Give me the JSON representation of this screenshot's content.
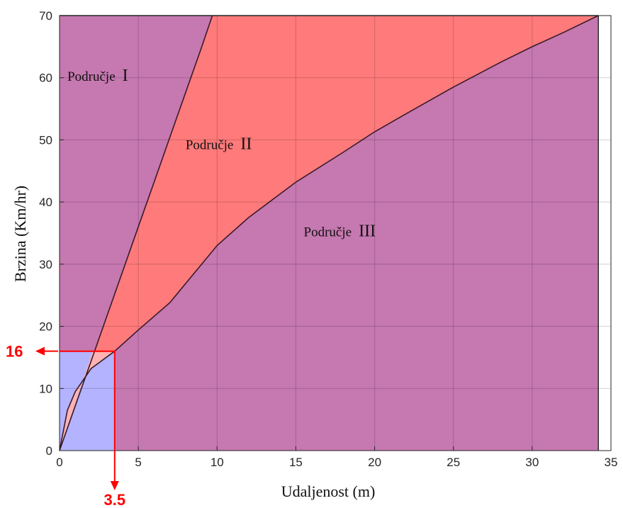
{
  "chart_data": {
    "type": "area",
    "xlabel": "Udaljenost (m)",
    "ylabel": "Brzina (Km/hr)",
    "xlim": [
      0,
      35
    ],
    "ylim": [
      0,
      70
    ],
    "x_ticks": [
      "0",
      "5",
      "10",
      "15",
      "20",
      "25",
      "30",
      "35"
    ],
    "y_ticks": [
      "0",
      "10",
      "20",
      "30",
      "40",
      "50",
      "60",
      "70"
    ],
    "grid": true,
    "boundaries": [
      {
        "id": "boundary-1",
        "x": [
          0,
          1,
          2,
          3,
          4,
          5,
          6,
          7,
          8,
          9,
          9.7
        ],
        "y": [
          0,
          7.2,
          14.4,
          21.6,
          28.8,
          36.0,
          43.2,
          50.4,
          57.6,
          64.8,
          70
        ]
      },
      {
        "id": "boundary-2",
        "x": [
          0,
          0.5,
          1,
          2,
          3.5,
          5,
          7,
          10,
          12,
          15,
          18,
          20,
          22,
          25,
          28,
          30,
          32,
          34.2
        ],
        "y": [
          0,
          6.5,
          9.5,
          13.2,
          16,
          19.4,
          23.8,
          33,
          37.5,
          43.2,
          48,
          51.3,
          54.2,
          58.5,
          62.5,
          65,
          67.3,
          70
        ]
      }
    ],
    "regions": [
      {
        "name": "Područje",
        "numeral": "I",
        "color": "#c678b0"
      },
      {
        "name": "Područje",
        "numeral": "II",
        "color": "#ff7a7a"
      },
      {
        "name": "Područje",
        "numeral": "III",
        "color": "#c678b0"
      }
    ],
    "region_labels": [
      {
        "text": "Područje",
        "numeral": "I",
        "x": 0.5,
        "y": 59.5
      },
      {
        "text": "Područje",
        "numeral": "II",
        "x": 8.0,
        "y": 48.5
      },
      {
        "text": "Područje",
        "numeral": "III",
        "x": 15.5,
        "y": 34.5
      }
    ],
    "corner_region_color": "#b3b3ff",
    "corner_wedge_color": "#ffb3b3",
    "marker": {
      "x": 3.5,
      "y": 16,
      "x_label": "3.5",
      "y_label": "16",
      "color": "#ff0000"
    }
  }
}
